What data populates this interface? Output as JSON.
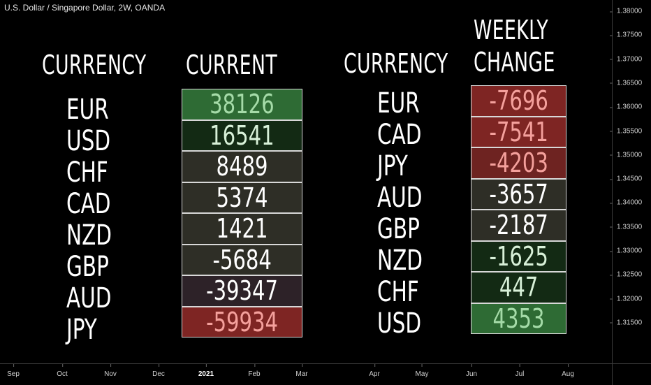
{
  "chart_title": "U.S. Dollar / Singapore Dollar, 2W, OANDA",
  "price_axis": [
    "1.38000",
    "1.37500",
    "1.37000",
    "1.36500",
    "1.36000",
    "1.35500",
    "1.35000",
    "1.34500",
    "1.34000",
    "1.33500",
    "1.33000",
    "1.32500",
    "1.32000",
    "1.31500"
  ],
  "time_axis": [
    {
      "label": "Sep",
      "bold": false
    },
    {
      "label": "Oct",
      "bold": false
    },
    {
      "label": "Nov",
      "bold": false
    },
    {
      "label": "Dec",
      "bold": false
    },
    {
      "label": "2021",
      "bold": true
    },
    {
      "label": "Feb",
      "bold": false
    },
    {
      "label": "Mar",
      "bold": false
    },
    {
      "label": "Apr",
      "bold": false
    },
    {
      "label": "May",
      "bold": false
    },
    {
      "label": "Jun",
      "bold": false
    },
    {
      "label": "Jul",
      "bold": false
    },
    {
      "label": "Aug",
      "bold": false
    }
  ],
  "headings": {
    "left_currency": "CURRENCY",
    "current": "CURRENT",
    "right_currency": "CURRENCY",
    "weekly_line1": "WEEKLY",
    "weekly_line2": "CHANGE"
  },
  "current_table": [
    {
      "code": "EUR",
      "value": "38126",
      "bg": "#2e6b34",
      "fg": "#a5dba8"
    },
    {
      "code": "USD",
      "value": "16541",
      "bg": "#132a14",
      "fg": "#d8f0d8"
    },
    {
      "code": "CHF",
      "value": "8489",
      "bg": "#2e2e26",
      "fg": "#ffffff"
    },
    {
      "code": "CAD",
      "value": "5374",
      "bg": "#2e2e26",
      "fg": "#ffffff"
    },
    {
      "code": "NZD",
      "value": "1421",
      "bg": "#2e2e26",
      "fg": "#ffffff"
    },
    {
      "code": "GBP",
      "value": "-5684",
      "bg": "#2e2e26",
      "fg": "#ffffff"
    },
    {
      "code": "AUD",
      "value": "-39347",
      "bg": "#2d2228",
      "fg": "#ffffff"
    },
    {
      "code": "JPY",
      "value": "-59934",
      "bg": "#7e2523",
      "fg": "#f4a09c"
    }
  ],
  "weekly_table": [
    {
      "code": "EUR",
      "value": "-7696",
      "bg": "#7e2523",
      "fg": "#f4a09c"
    },
    {
      "code": "CAD",
      "value": "-7541",
      "bg": "#7e2523",
      "fg": "#f4a09c"
    },
    {
      "code": "JPY",
      "value": "-4203",
      "bg": "#6e2321",
      "fg": "#f4a09c"
    },
    {
      "code": "AUD",
      "value": "-3657",
      "bg": "#2e2e26",
      "fg": "#ffffff"
    },
    {
      "code": "GBP",
      "value": "-2187",
      "bg": "#2e2e26",
      "fg": "#ffffff"
    },
    {
      "code": "NZD",
      "value": "-1625",
      "bg": "#132a14",
      "fg": "#d8f0d8"
    },
    {
      "code": "CHF",
      "value": "447",
      "bg": "#132a14",
      "fg": "#d8f0d8"
    },
    {
      "code": "USD",
      "value": "4353",
      "bg": "#2e6b34",
      "fg": "#a5dba8"
    }
  ]
}
